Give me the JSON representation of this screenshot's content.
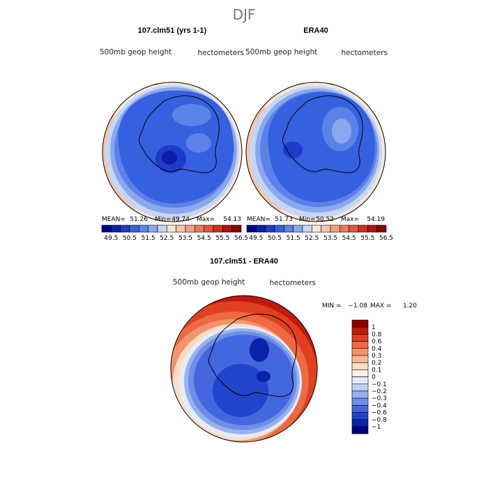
{
  "chart_data": {
    "type": "heatmap",
    "title": "DJF",
    "panels": [
      {
        "title": "107.clm51 (yrs 1-1)",
        "left_label": "500mb geop height",
        "right_label": "hectometers",
        "stats": {
          "mean_label": "MEAN=",
          "mean": "51.26",
          "min_label": "Min=",
          "min": "49.74",
          "max_label": "Max=",
          "max": "54.13"
        },
        "colorbar_ticks": [
          "49.5",
          "50.5",
          "51.5",
          "52.5",
          "53.5",
          "54.5",
          "55.5",
          "56.5"
        ]
      },
      {
        "title": "ERA40",
        "left_label": "500mb geop height",
        "right_label": "hectometers",
        "stats": {
          "mean_label": "MEAN=",
          "mean": "51.73",
          "min_label": "Min=",
          "min": "50.52",
          "max_label": "Max=",
          "max": "54.19"
        },
        "colorbar_ticks": [
          "49.5",
          "50.5",
          "51.5",
          "52.5",
          "53.5",
          "54.5",
          "55.5",
          "56.5"
        ]
      },
      {
        "title": "107.clm51 - ERA40",
        "left_label": "500mb geop height",
        "right_label": "hectometers",
        "stats": {
          "min_label": "MIN =",
          "min": "−1.08",
          "max_label": "MAX =",
          "max": "1.20"
        },
        "colorbar_ticks": [
          "1",
          "0.8",
          "0.6",
          "0.4",
          "0.3",
          "0.2",
          "0.1",
          "0",
          "−0.1",
          "−0.2",
          "−0.3",
          "−0.4",
          "−0.6",
          "−0.8",
          "−1"
        ]
      }
    ]
  },
  "colors": {
    "abs_scale": [
      "#00008c",
      "#0a1ea8",
      "#1e3cc8",
      "#3560e0",
      "#5a82e8",
      "#8aa8ee",
      "#c6d6f6",
      "#fbe6d8",
      "#f8c4a8",
      "#f4a080",
      "#ef7a58",
      "#e65432",
      "#d7301a",
      "#b4120c",
      "#8c0000"
    ],
    "diff_scale": [
      "#8c0000",
      "#c01a0e",
      "#e04020",
      "#ee6a44",
      "#f4946c",
      "#f8b896",
      "#fbdcc6",
      "#fdf0e6",
      "#e4ecfb",
      "#c2d2f6",
      "#98b2ef",
      "#6f8ee8",
      "#4466de",
      "#2244cc",
      "#0a22a8",
      "#000080"
    ],
    "blue_dark": "#1e3cc8",
    "blue_mid": "#3560e0",
    "blue_light": "#5a82e8",
    "blue_pale": "#8aa8ee",
    "red": "#e04020",
    "red_dark": "#b4120c"
  }
}
